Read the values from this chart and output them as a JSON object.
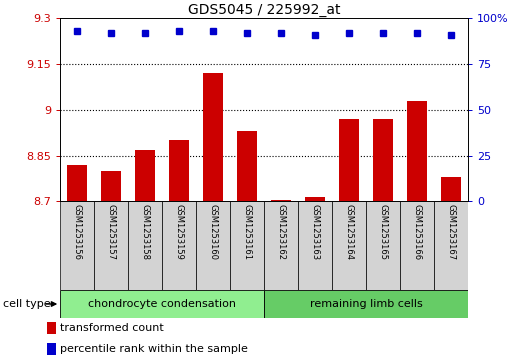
{
  "title": "GDS5045 / 225992_at",
  "samples": [
    "GSM1253156",
    "GSM1253157",
    "GSM1253158",
    "GSM1253159",
    "GSM1253160",
    "GSM1253161",
    "GSM1253162",
    "GSM1253163",
    "GSM1253164",
    "GSM1253165",
    "GSM1253166",
    "GSM1253167"
  ],
  "bar_values": [
    8.82,
    8.8,
    8.87,
    8.9,
    9.12,
    8.93,
    8.705,
    8.715,
    8.97,
    8.97,
    9.03,
    8.78
  ],
  "percentile_values": [
    93,
    92,
    92,
    93,
    93,
    92,
    92,
    91,
    92,
    92,
    92,
    91
  ],
  "bar_color": "#cc0000",
  "dot_color": "#0000cc",
  "ylim_left": [
    8.7,
    9.3
  ],
  "ylim_right": [
    0,
    100
  ],
  "yticks_left": [
    8.7,
    8.85,
    9.0,
    9.15,
    9.3
  ],
  "yticks_right": [
    0,
    25,
    50,
    75,
    100
  ],
  "ytick_labels_left": [
    "8.7",
    "8.85",
    "9",
    "9.15",
    "9.3"
  ],
  "ytick_labels_right": [
    "0",
    "25",
    "50",
    "75",
    "100%"
  ],
  "grid_values": [
    8.85,
    9.0,
    9.15
  ],
  "cell_type_label": "cell type",
  "group1_label": "chondrocyte condensation",
  "group2_label": "remaining limb cells",
  "group1_count": 6,
  "group2_count": 6,
  "legend1": "transformed count",
  "legend2": "percentile rank within the sample",
  "group1_color": "#90ee90",
  "group2_color": "#66cc66",
  "bg_color": "#d3d3d3",
  "title_fontsize": 10,
  "tick_fontsize": 8,
  "label_fontsize": 8.5
}
